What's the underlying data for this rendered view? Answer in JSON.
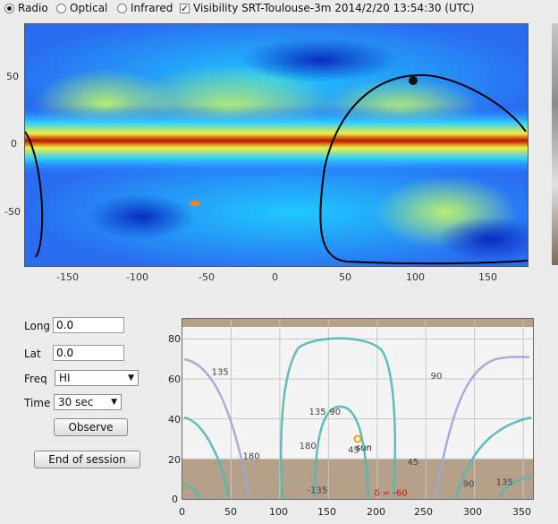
{
  "toolbar": {
    "radio_label": "Radio",
    "optical_label": "Optical",
    "infrared_label": "Infrared",
    "visibility_label": "Visibility SRT-Toulouse-3m 2014/2/20 13:54:30 (UTC)",
    "selected_mode": "Radio",
    "visibility_checked": true
  },
  "skymap": {
    "x_ticks": [
      "-150",
      "-100",
      "-50",
      "0",
      "50",
      "100",
      "150"
    ],
    "y_ticks": [
      "50",
      "0",
      "-50"
    ]
  },
  "controls": {
    "long_label": "Long",
    "long_value": "0.0",
    "lat_label": "Lat",
    "lat_value": "0.0",
    "freq_label": "Freq",
    "freq_value": "HI",
    "time_label": "Time",
    "time_value": "30 sec",
    "observe_label": "Observe",
    "end_session_label": "End of session"
  },
  "chart_data": {
    "type": "line",
    "xlim": [
      0,
      360
    ],
    "ylim": [
      0,
      90
    ],
    "x_ticks": [
      "0",
      "50",
      "100",
      "150",
      "200",
      "250",
      "300",
      "350"
    ],
    "y_ticks": [
      "0",
      "20",
      "40",
      "60",
      "80"
    ],
    "horizon_limit": 20,
    "upper_limit": 86,
    "contour_labels": [
      {
        "text": "135",
        "x": 30,
        "y": 62
      },
      {
        "text": "180",
        "x": 62,
        "y": 20
      },
      {
        "text": "135",
        "x": 130,
        "y": 42
      },
      {
        "text": "90",
        "x": 151,
        "y": 42
      },
      {
        "text": "180",
        "x": 120,
        "y": 25
      },
      {
        "text": "45",
        "x": 170,
        "y": 23
      },
      {
        "text": "-135",
        "x": 128,
        "y": 3
      },
      {
        "text": "45",
        "x": 231,
        "y": 17
      },
      {
        "text": "90",
        "x": 255,
        "y": 60
      },
      {
        "text": "90",
        "x": 288,
        "y": 6
      },
      {
        "text": "135",
        "x": 322,
        "y": 7
      }
    ],
    "declination_label": "δ = -60",
    "sun": {
      "label": "sun",
      "x": 180,
      "y": 30
    }
  },
  "colors": {
    "ground": "#b5a08a",
    "teal": "#4fb8b4",
    "lavender": "#a2a4d8",
    "sun": "#e8a000",
    "dec": "#d01010"
  }
}
